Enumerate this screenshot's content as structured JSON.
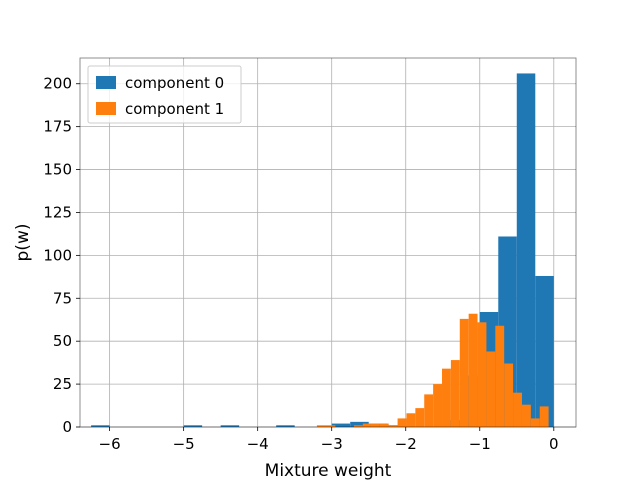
{
  "chart_data": {
    "type": "histogram",
    "xlabel": "Mixture weight",
    "ylabel": "p(w)",
    "xlim": [
      -6.4,
      0.3
    ],
    "ylim": [
      0,
      215
    ],
    "xticks": [
      -6,
      -5,
      -4,
      -3,
      -2,
      -1,
      0
    ],
    "xtick_labels": [
      "−6",
      "−5",
      "−4",
      "−3",
      "−2",
      "−1",
      "0"
    ],
    "yticks": [
      0,
      25,
      50,
      75,
      100,
      125,
      150,
      175,
      200
    ],
    "ytick_labels": [
      "0",
      "25",
      "50",
      "75",
      "100",
      "125",
      "150",
      "175",
      "200"
    ],
    "grid": true,
    "legend_position": "top-left",
    "series": [
      {
        "name": "component 0",
        "color": "#1f77b4",
        "bins": [
          {
            "x0": -6.25,
            "x1": -6.0,
            "value": 1
          },
          {
            "x0": -5.0,
            "x1": -4.75,
            "value": 1
          },
          {
            "x0": -4.5,
            "x1": -4.25,
            "value": 1
          },
          {
            "x0": -3.75,
            "x1": -3.5,
            "value": 1
          },
          {
            "x0": -3.0,
            "x1": -2.75,
            "value": 2
          },
          {
            "x0": -2.75,
            "x1": -2.5,
            "value": 3
          },
          {
            "x0": -2.5,
            "x1": -2.25,
            "value": 2
          },
          {
            "x0": -2.25,
            "x1": -2.0,
            "value": 1
          },
          {
            "x0": -1.5,
            "x1": -1.25,
            "value": 4
          },
          {
            "x0": -1.25,
            "x1": -1.0,
            "value": 30
          },
          {
            "x0": -1.0,
            "x1": -0.75,
            "value": 67
          },
          {
            "x0": -0.75,
            "x1": -0.5,
            "value": 111
          },
          {
            "x0": -0.5,
            "x1": -0.25,
            "value": 206
          },
          {
            "x0": -0.25,
            "x1": 0.0,
            "value": 88
          }
        ]
      },
      {
        "name": "component 1",
        "color": "#ff7f0e",
        "bins": [
          {
            "x0": -3.2,
            "x1": -2.95,
            "value": 1
          },
          {
            "x0": -2.7,
            "x1": -2.58,
            "value": 1
          },
          {
            "x0": -2.58,
            "x1": -2.47,
            "value": 2
          },
          {
            "x0": -2.47,
            "x1": -2.35,
            "value": 2
          },
          {
            "x0": -2.35,
            "x1": -2.23,
            "value": 2
          },
          {
            "x0": -2.23,
            "x1": -2.11,
            "value": 1
          },
          {
            "x0": -2.11,
            "x1": -1.99,
            "value": 5
          },
          {
            "x0": -1.99,
            "x1": -1.87,
            "value": 8
          },
          {
            "x0": -1.87,
            "x1": -1.75,
            "value": 11
          },
          {
            "x0": -1.75,
            "x1": -1.63,
            "value": 19
          },
          {
            "x0": -1.63,
            "x1": -1.51,
            "value": 25
          },
          {
            "x0": -1.51,
            "x1": -1.39,
            "value": 34
          },
          {
            "x0": -1.39,
            "x1": -1.27,
            "value": 39
          },
          {
            "x0": -1.27,
            "x1": -1.15,
            "value": 63
          },
          {
            "x0": -1.15,
            "x1": -1.03,
            "value": 66
          },
          {
            "x0": -1.03,
            "x1": -0.91,
            "value": 61
          },
          {
            "x0": -0.91,
            "x1": -0.79,
            "value": 44
          },
          {
            "x0": -0.79,
            "x1": -0.67,
            "value": 59
          },
          {
            "x0": -0.67,
            "x1": -0.55,
            "value": 37
          },
          {
            "x0": -0.55,
            "x1": -0.43,
            "value": 20
          },
          {
            "x0": -0.43,
            "x1": -0.31,
            "value": 13
          },
          {
            "x0": -0.31,
            "x1": -0.19,
            "value": 5
          },
          {
            "x0": -0.19,
            "x1": -0.07,
            "value": 12
          }
        ]
      }
    ]
  }
}
